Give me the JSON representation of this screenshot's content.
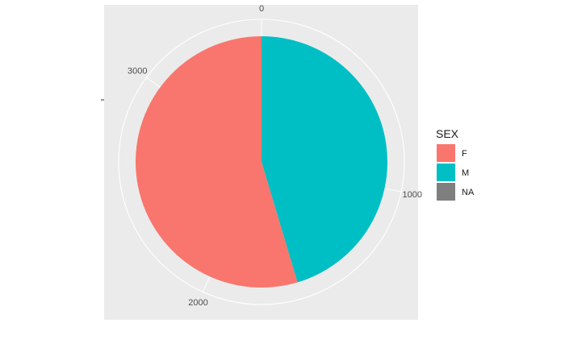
{
  "chart_data": {
    "type": "pie",
    "coord": "polar",
    "theta_ticks": [
      0,
      1000,
      2000,
      3000
    ],
    "categories": [
      "F",
      "M",
      "NA"
    ],
    "values": [
      1925,
      1600,
      0
    ],
    "colors": {
      "F": "#F8766D",
      "M": "#00BFC4",
      "NA": "#7F7F7F"
    },
    "panel_background": "#EBEBEB",
    "grid": true,
    "legend": {
      "title": "SEX",
      "position": "right",
      "items": [
        {
          "label": "F",
          "color": "#F8766D"
        },
        {
          "label": "M",
          "color": "#00BFC4"
        },
        {
          "label": "NA",
          "color": "#7F7F7F"
        }
      ]
    }
  }
}
